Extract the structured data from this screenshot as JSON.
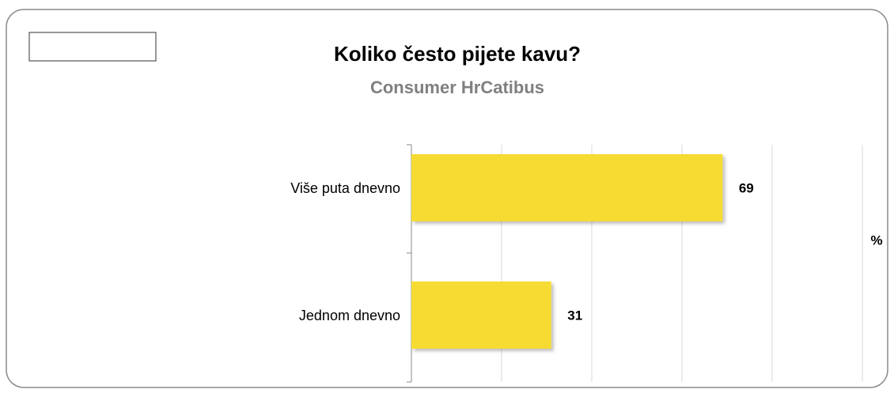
{
  "chart_data": {
    "type": "bar",
    "orientation": "horizontal",
    "title": "Koliko često pijete kavu?",
    "subtitle": "Consumer HrCatibus",
    "axis_label": "%",
    "categories": [
      "Više puta dnevno",
      "Jednom dnevno"
    ],
    "values": [
      69,
      31
    ],
    "color": "#f6dc32",
    "xlim": [
      0,
      100
    ],
    "xticks": [
      0,
      20,
      40,
      60,
      80,
      100
    ],
    "grid": true
  }
}
